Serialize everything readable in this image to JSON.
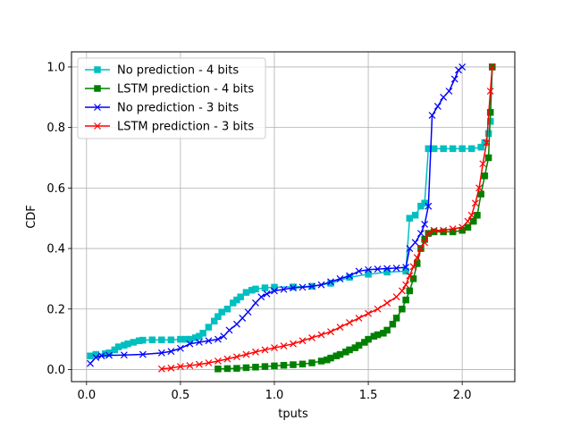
{
  "chart_data": {
    "type": "line",
    "xlabel": "tputs",
    "ylabel": "CDF",
    "xlim": [
      -0.08,
      2.28
    ],
    "ylim": [
      -0.04,
      1.05
    ],
    "xticks": [
      0.0,
      0.5,
      1.0,
      1.5,
      2.0
    ],
    "xtick_labels": [
      "0.0",
      "0.5",
      "1.0",
      "1.5",
      "2.0"
    ],
    "yticks": [
      0.0,
      0.2,
      0.4,
      0.6,
      0.8,
      1.0
    ],
    "ytick_labels": [
      "0.0",
      "0.2",
      "0.4",
      "0.6",
      "0.8",
      "1.0"
    ],
    "grid": true,
    "legend_position": "top-left",
    "series": [
      {
        "name": "No prediction - 4 bits",
        "color": "#00bfbf",
        "marker": "square",
        "x": [
          0.02,
          0.05,
          0.1,
          0.12,
          0.15,
          0.17,
          0.2,
          0.22,
          0.25,
          0.28,
          0.3,
          0.35,
          0.4,
          0.45,
          0.5,
          0.53,
          0.55,
          0.58,
          0.6,
          0.62,
          0.65,
          0.68,
          0.7,
          0.72,
          0.75,
          0.78,
          0.8,
          0.82,
          0.85,
          0.88,
          0.9,
          0.95,
          1.0,
          1.1,
          1.2,
          1.3,
          1.4,
          1.5,
          1.6,
          1.7,
          1.72,
          1.75,
          1.78,
          1.8,
          1.82,
          1.85,
          1.9,
          1.95,
          2.0,
          2.05,
          2.1,
          2.12,
          2.14,
          2.15,
          2.16
        ],
        "values": [
          0.045,
          0.05,
          0.052,
          0.055,
          0.065,
          0.075,
          0.08,
          0.085,
          0.09,
          0.095,
          0.097,
          0.098,
          0.098,
          0.098,
          0.1,
          0.1,
          0.1,
          0.105,
          0.11,
          0.12,
          0.14,
          0.16,
          0.175,
          0.19,
          0.2,
          0.22,
          0.23,
          0.24,
          0.255,
          0.262,
          0.266,
          0.27,
          0.272,
          0.273,
          0.275,
          0.285,
          0.305,
          0.315,
          0.322,
          0.325,
          0.5,
          0.51,
          0.54,
          0.55,
          0.73,
          0.73,
          0.73,
          0.73,
          0.73,
          0.73,
          0.735,
          0.75,
          0.78,
          0.82,
          1.0
        ]
      },
      {
        "name": "LSTM prediction - 4 bits",
        "color": "#008000",
        "marker": "square",
        "x": [
          0.7,
          0.75,
          0.8,
          0.85,
          0.9,
          0.95,
          1.0,
          1.05,
          1.1,
          1.15,
          1.2,
          1.25,
          1.28,
          1.3,
          1.33,
          1.35,
          1.38,
          1.4,
          1.43,
          1.45,
          1.48,
          1.5,
          1.53,
          1.55,
          1.58,
          1.6,
          1.63,
          1.65,
          1.68,
          1.7,
          1.72,
          1.74,
          1.76,
          1.78,
          1.8,
          1.82,
          1.85,
          1.9,
          1.95,
          2.0,
          2.03,
          2.06,
          2.08,
          2.1,
          2.12,
          2.14,
          2.15,
          2.16
        ],
        "values": [
          0.002,
          0.003,
          0.004,
          0.006,
          0.008,
          0.01,
          0.012,
          0.014,
          0.016,
          0.018,
          0.022,
          0.028,
          0.032,
          0.038,
          0.045,
          0.05,
          0.058,
          0.065,
          0.072,
          0.08,
          0.09,
          0.1,
          0.11,
          0.115,
          0.12,
          0.13,
          0.15,
          0.17,
          0.2,
          0.23,
          0.26,
          0.3,
          0.35,
          0.4,
          0.43,
          0.45,
          0.455,
          0.455,
          0.455,
          0.46,
          0.47,
          0.49,
          0.51,
          0.58,
          0.64,
          0.7,
          0.85,
          1.0
        ]
      },
      {
        "name": "No prediction - 3 bits",
        "color": "#0000ff",
        "marker": "x",
        "x": [
          0.02,
          0.05,
          0.08,
          0.12,
          0.2,
          0.3,
          0.4,
          0.45,
          0.5,
          0.55,
          0.6,
          0.65,
          0.7,
          0.73,
          0.76,
          0.8,
          0.83,
          0.86,
          0.9,
          0.93,
          0.96,
          1.0,
          1.05,
          1.1,
          1.15,
          1.2,
          1.25,
          1.3,
          1.35,
          1.4,
          1.45,
          1.5,
          1.55,
          1.6,
          1.65,
          1.7,
          1.72,
          1.75,
          1.78,
          1.8,
          1.82,
          1.84,
          1.87,
          1.9,
          1.93,
          1.96,
          1.98,
          2.0
        ],
        "values": [
          0.02,
          0.04,
          0.045,
          0.047,
          0.048,
          0.05,
          0.055,
          0.06,
          0.07,
          0.085,
          0.09,
          0.095,
          0.1,
          0.11,
          0.13,
          0.15,
          0.17,
          0.19,
          0.22,
          0.24,
          0.25,
          0.26,
          0.265,
          0.27,
          0.272,
          0.275,
          0.28,
          0.29,
          0.3,
          0.31,
          0.325,
          0.33,
          0.332,
          0.334,
          0.335,
          0.338,
          0.4,
          0.42,
          0.45,
          0.48,
          0.54,
          0.84,
          0.87,
          0.9,
          0.92,
          0.96,
          0.99,
          1.0
        ]
      },
      {
        "name": "LSTM prediction - 3 bits",
        "color": "#ff0000",
        "marker": "x",
        "x": [
          0.4,
          0.45,
          0.5,
          0.55,
          0.6,
          0.65,
          0.7,
          0.75,
          0.8,
          0.85,
          0.9,
          0.95,
          1.0,
          1.05,
          1.1,
          1.15,
          1.2,
          1.25,
          1.3,
          1.35,
          1.4,
          1.45,
          1.5,
          1.55,
          1.6,
          1.65,
          1.68,
          1.7,
          1.72,
          1.74,
          1.76,
          1.78,
          1.8,
          1.82,
          1.85,
          1.9,
          1.95,
          2.0,
          2.03,
          2.05,
          2.07,
          2.09,
          2.11,
          2.13,
          2.15,
          2.16
        ],
        "values": [
          0.002,
          0.005,
          0.01,
          0.013,
          0.017,
          0.022,
          0.028,
          0.035,
          0.042,
          0.05,
          0.058,
          0.065,
          0.072,
          0.078,
          0.085,
          0.095,
          0.105,
          0.115,
          0.125,
          0.14,
          0.155,
          0.17,
          0.185,
          0.2,
          0.22,
          0.24,
          0.26,
          0.28,
          0.31,
          0.34,
          0.37,
          0.4,
          0.42,
          0.45,
          0.46,
          0.46,
          0.465,
          0.47,
          0.49,
          0.51,
          0.55,
          0.6,
          0.68,
          0.75,
          0.92,
          1.0
        ]
      }
    ]
  }
}
